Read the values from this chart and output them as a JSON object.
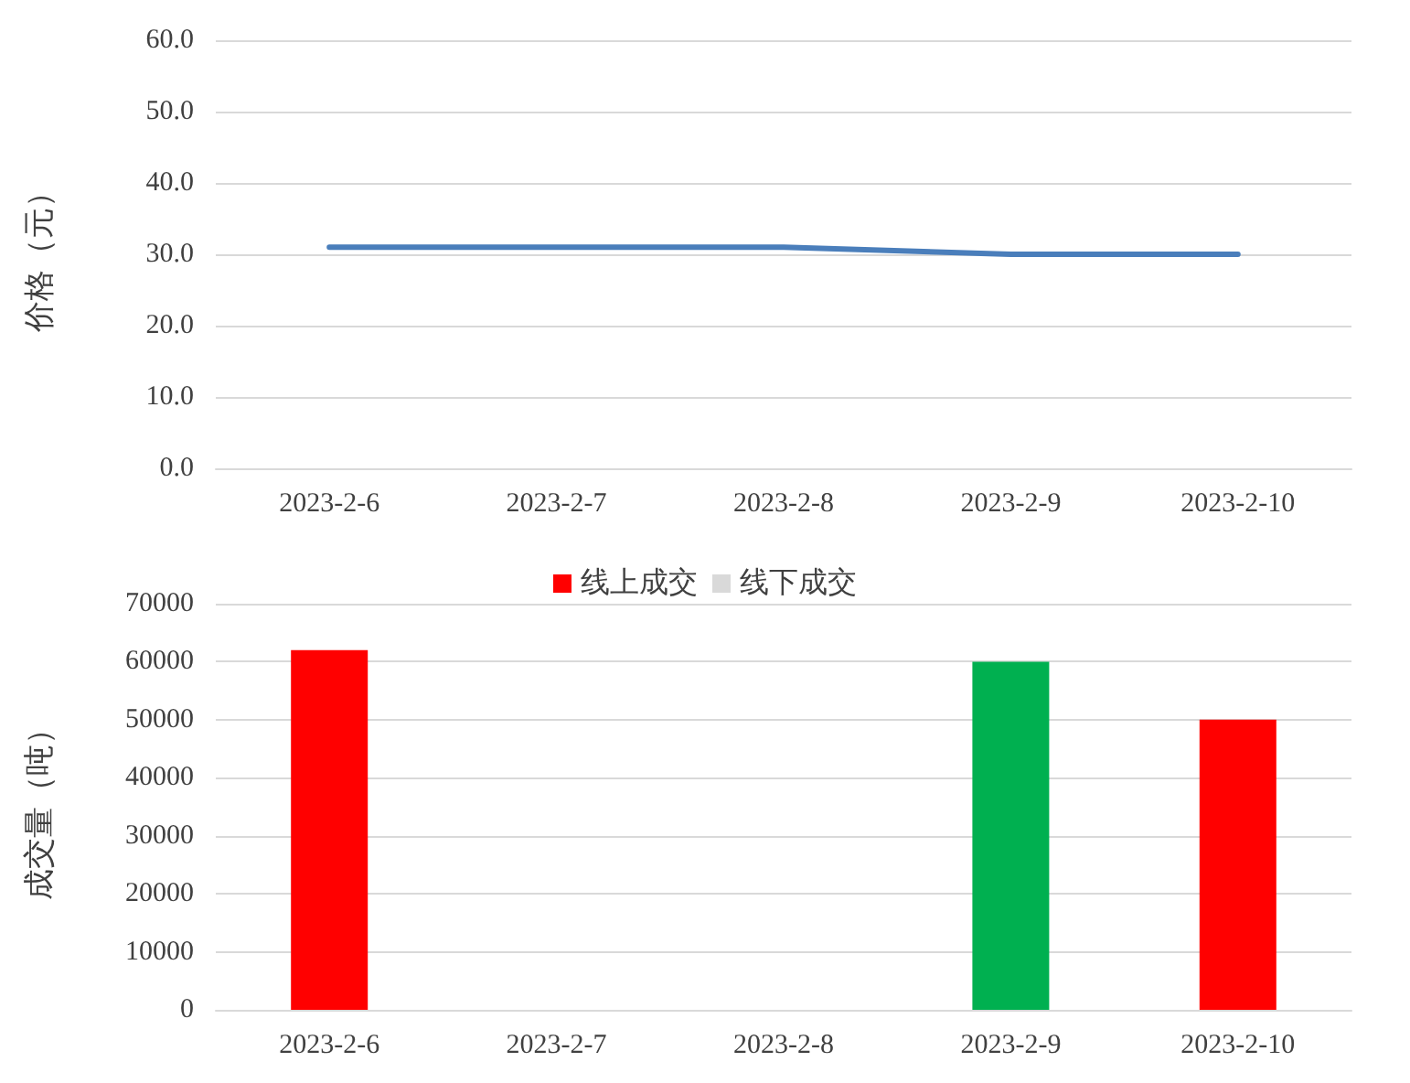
{
  "chart_data": [
    {
      "type": "line",
      "ylabel": "价格（元）",
      "categories": [
        "2023-2-6",
        "2023-2-7",
        "2023-2-8",
        "2023-2-9",
        "2023-2-10"
      ],
      "series": [
        {
          "color": "#4a7ebb",
          "values": [
            31,
            31,
            31,
            30,
            30
          ]
        }
      ],
      "ylim": [
        0,
        60
      ],
      "yticks": [
        {
          "value": 0,
          "label": "0.0"
        },
        {
          "value": 10,
          "label": "10.0"
        },
        {
          "value": 20,
          "label": "20.0"
        },
        {
          "value": 30,
          "label": "30.0"
        },
        {
          "value": 40,
          "label": "40.0"
        },
        {
          "value": 50,
          "label": "50.0"
        },
        {
          "value": 60,
          "label": "60.0"
        }
      ],
      "grid": "y",
      "legend": false,
      "marker": "none",
      "line_style": "solid"
    },
    {
      "type": "bar",
      "ylabel": "成交量（吨）",
      "categories": [
        "2023-2-6",
        "2023-2-7",
        "2023-2-8",
        "2023-2-9",
        "2023-2-10"
      ],
      "series": [
        {
          "name": "线上成交",
          "color": "#ff0000",
          "colors": [
            "#ff0000",
            "#ff0000",
            "#ff0000",
            "#00b050",
            "#ff0000"
          ],
          "values": [
            62000,
            null,
            null,
            60000,
            50000
          ]
        },
        {
          "name": "线下成交",
          "color": "#d9d9d9",
          "values": [
            null,
            null,
            null,
            null,
            null
          ]
        }
      ],
      "ylim": [
        0,
        70000
      ],
      "yticks": [
        0,
        10000,
        20000,
        30000,
        40000,
        50000,
        60000,
        70000
      ],
      "grid": "y",
      "legend": "top"
    }
  ]
}
